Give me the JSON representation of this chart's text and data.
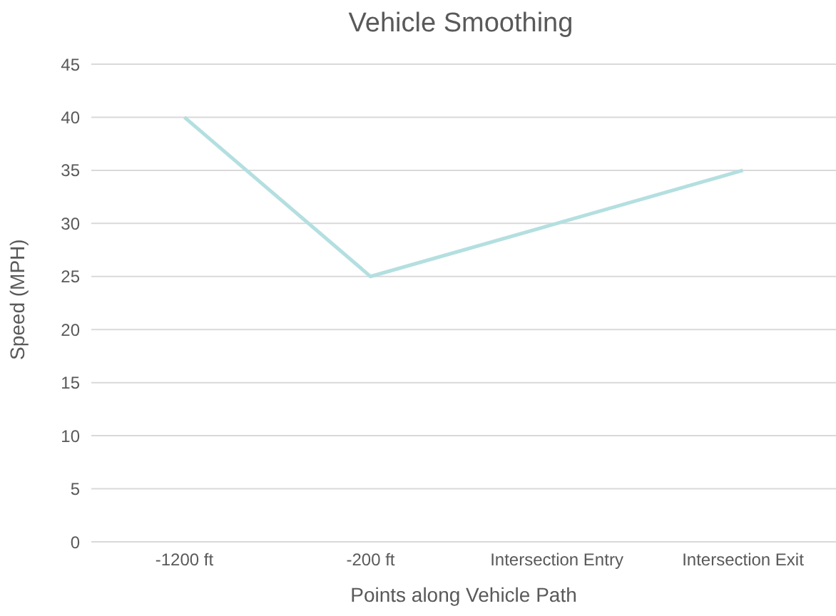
{
  "chart_data": {
    "type": "line",
    "title": "Vehicle Smoothing",
    "xlabel": "Points along Vehicle Path",
    "ylabel": "Speed (MPH)",
    "categories": [
      "-1200 ft",
      "-200 ft",
      "Intersection Entry",
      "Intersection Exit"
    ],
    "series": [
      {
        "color": "#b4dfe0",
        "values": [
          40,
          25,
          30,
          35
        ]
      }
    ],
    "ylim": [
      0,
      45
    ],
    "yticks": [
      0,
      5,
      10,
      15,
      20,
      25,
      30,
      35,
      40,
      45
    ],
    "grid": "y",
    "legend": false,
    "marker": "none",
    "line_style": "solid"
  }
}
